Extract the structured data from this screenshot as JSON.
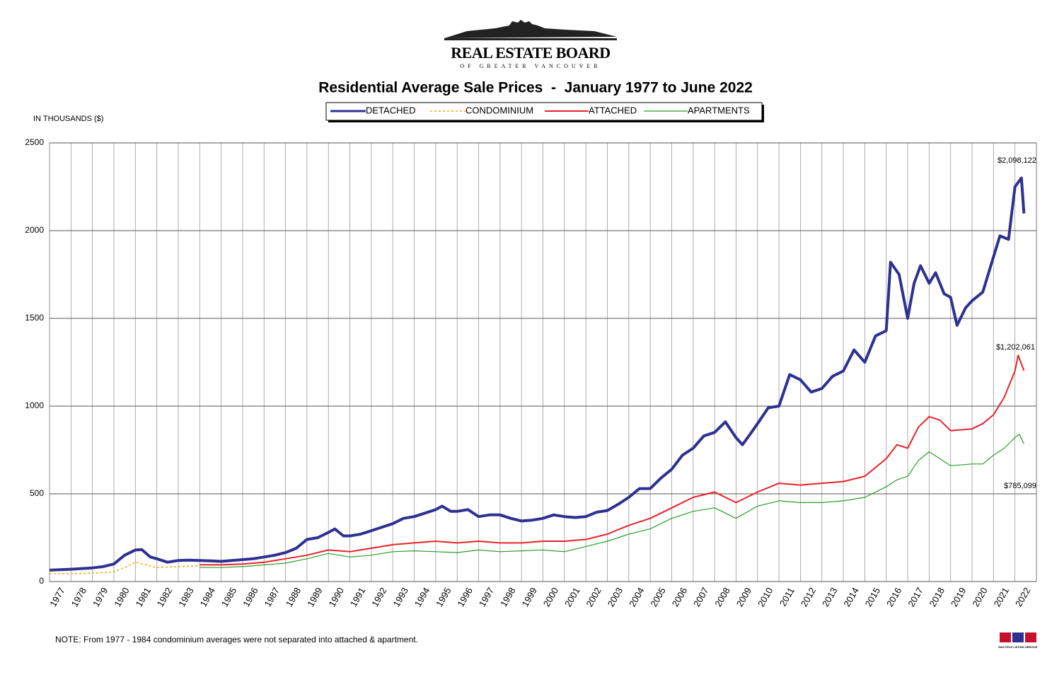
{
  "header": {
    "org": "REAL ESTATE BOARD",
    "org_sub": "OF GREATER VANCOUVER"
  },
  "chart_data": {
    "type": "line",
    "title": "Residential Average Sale Prices  -  January 1977 to June 2022",
    "y_label": "IN THOUSANDS ($)",
    "note": "NOTE:  From 1977 - 1984 condominium averages were not separated into attached & apartment.",
    "logo_text": "MULTIPLE LISTING SERVICE",
    "xlim": [
      1977,
      2023
    ],
    "xticks": [
      1977,
      1978,
      1979,
      1980,
      1981,
      1982,
      1983,
      1984,
      1985,
      1986,
      1987,
      1988,
      1989,
      1990,
      1991,
      1992,
      1993,
      1994,
      1995,
      1996,
      1997,
      1998,
      1999,
      2000,
      2001,
      2002,
      2003,
      2004,
      2005,
      2006,
      2007,
      2008,
      2009,
      2010,
      2011,
      2012,
      2013,
      2014,
      2015,
      2016,
      2017,
      2018,
      2019,
      2020,
      2021,
      2022
    ],
    "ylim": [
      0,
      2500
    ],
    "yticks": [
      0,
      500,
      1000,
      1500,
      2000,
      2500
    ],
    "grid": true,
    "annotations": [
      "$2,098,122",
      "$1,202,061",
      "$785,099"
    ],
    "series": [
      {
        "name": "DETACHED",
        "color": "#2e3192",
        "line_width": 4,
        "style": "solid",
        "x": [
          1977,
          1978,
          1979,
          1979.5,
          1980,
          1980.5,
          1981,
          1981.3,
          1981.7,
          1982,
          1982.5,
          1983,
          1983.5,
          1984,
          1984.5,
          1985,
          1985.5,
          1986,
          1986.5,
          1987,
          1987.5,
          1988,
          1988.5,
          1989,
          1989.5,
          1990,
          1990.3,
          1990.7,
          1991,
          1991.5,
          1992,
          1992.5,
          1993,
          1993.5,
          1994,
          1994.5,
          1995,
          1995.3,
          1995.7,
          1996,
          1996.5,
          1997,
          1997.5,
          1998,
          1998.5,
          1999,
          1999.5,
          2000,
          2000.5,
          2001,
          2001.5,
          2002,
          2002.5,
          2003,
          2003.5,
          2004,
          2004.5,
          2005,
          2005.5,
          2006,
          2006.5,
          2007,
          2007.5,
          2008,
          2008.5,
          2009,
          2009.3,
          2009.6,
          2010,
          2010.5,
          2011,
          2011.5,
          2012,
          2012.5,
          2013,
          2013.5,
          2014,
          2014.5,
          2015,
          2015.5,
          2016,
          2016.2,
          2016.6,
          2017,
          2017.3,
          2017.6,
          2018,
          2018.3,
          2018.7,
          2019,
          2019.3,
          2019.7,
          2020,
          2020.5,
          2021,
          2021.3,
          2021.7,
          2022,
          2022.3,
          2022.42
        ],
        "values": [
          65,
          70,
          78,
          85,
          100,
          150,
          180,
          182,
          140,
          130,
          110,
          120,
          122,
          120,
          118,
          115,
          120,
          125,
          130,
          140,
          150,
          165,
          190,
          240,
          250,
          280,
          300,
          260,
          260,
          270,
          290,
          310,
          330,
          360,
          370,
          390,
          410,
          430,
          400,
          400,
          410,
          370,
          380,
          380,
          360,
          345,
          350,
          360,
          380,
          370,
          365,
          370,
          395,
          405,
          440,
          480,
          530,
          530,
          590,
          640,
          720,
          760,
          830,
          850,
          910,
          820,
          780,
          830,
          900,
          990,
          1000,
          1180,
          1150,
          1080,
          1100,
          1170,
          1200,
          1320,
          1250,
          1400,
          1430,
          1820,
          1750,
          1500,
          1700,
          1800,
          1700,
          1760,
          1640,
          1620,
          1460,
          1560,
          1600,
          1650,
          1850,
          1970,
          1950,
          2250,
          2300,
          2098
        ]
      },
      {
        "name": "CONDOMINIUM",
        "color": "#f7a800",
        "line_width": 1.5,
        "style": "dotted",
        "x": [
          1977,
          1978,
          1979,
          1980,
          1980.5,
          1981,
          1981.5,
          1982,
          1983,
          1984
        ],
        "values": [
          45,
          45,
          48,
          55,
          80,
          110,
          95,
          80,
          85,
          90
        ]
      },
      {
        "name": "ATTACHED",
        "color": "#e8232a",
        "line_width": 2,
        "style": "solid",
        "x": [
          1984,
          1985,
          1986,
          1987,
          1988,
          1989,
          1990,
          1991,
          1992,
          1993,
          1994,
          1995,
          1996,
          1997,
          1998,
          1999,
          2000,
          2001,
          2002,
          2003,
          2004,
          2005,
          2006,
          2007,
          2008,
          2009,
          2010,
          2011,
          2012,
          2013,
          2014,
          2015,
          2016,
          2016.5,
          2017,
          2017.5,
          2018,
          2018.5,
          2019,
          2020,
          2020.5,
          2021,
          2021.5,
          2022,
          2022.15,
          2022.42
        ],
        "values": [
          95,
          95,
          100,
          110,
          130,
          150,
          180,
          170,
          190,
          210,
          220,
          230,
          220,
          230,
          220,
          220,
          230,
          230,
          240,
          270,
          320,
          360,
          420,
          480,
          510,
          450,
          510,
          560,
          550,
          560,
          570,
          600,
          700,
          780,
          760,
          880,
          940,
          920,
          860,
          870,
          900,
          950,
          1050,
          1200,
          1290,
          1202
        ]
      },
      {
        "name": "APARTMENTS",
        "color": "#2a9d2a",
        "line_width": 1.2,
        "style": "solid",
        "x": [
          1984,
          1985,
          1986,
          1987,
          1988,
          1989,
          1990,
          1991,
          1992,
          1993,
          1994,
          1995,
          1996,
          1997,
          1998,
          1999,
          2000,
          2001,
          2002,
          2003,
          2004,
          2005,
          2006,
          2007,
          2008,
          2009,
          2010,
          2011,
          2012,
          2013,
          2014,
          2015,
          2016,
          2016.5,
          2017,
          2017.5,
          2018,
          2018.5,
          2019,
          2020,
          2020.5,
          2021,
          2021.5,
          2022,
          2022.2,
          2022.42
        ],
        "values": [
          80,
          80,
          85,
          95,
          105,
          130,
          160,
          140,
          150,
          170,
          175,
          170,
          165,
          180,
          170,
          175,
          180,
          170,
          200,
          230,
          270,
          300,
          360,
          400,
          420,
          360,
          430,
          460,
          450,
          450,
          460,
          480,
          540,
          580,
          600,
          690,
          740,
          700,
          660,
          670,
          670,
          720,
          760,
          820,
          840,
          785
        ]
      }
    ]
  }
}
